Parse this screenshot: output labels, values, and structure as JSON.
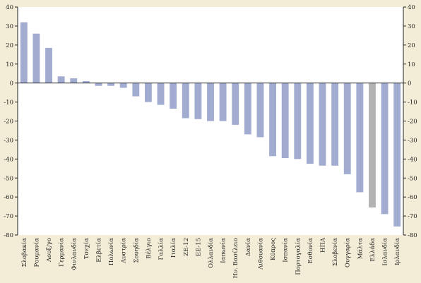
{
  "chart_data": {
    "type": "bar",
    "title": "",
    "xlabel": "",
    "ylabel": "",
    "ylim": [
      -80,
      40
    ],
    "yticks": [
      "40",
      "30",
      "20",
      "10",
      "0",
      "-10",
      "-20",
      "-30",
      "-40",
      "-50",
      "-60",
      "-70",
      "-80"
    ],
    "grid": false,
    "axes": "left-and-right",
    "colors": {
      "bar": "#a1acd0",
      "highlight": "#b3b3b3",
      "background": "#f3ecd7",
      "plot_background": "#ffffff"
    },
    "highlight_category": "Ελλάδα",
    "categories": [
      "Σλοβακία",
      "Ρουμανία",
      "Λουξ/γο",
      "Γερμανία",
      "Φινλανδία",
      "Τσεχία",
      "Ελβετία",
      "Πολωνία",
      "Αυστρία",
      "Σουηδία",
      "Βέλγιο",
      "Γαλλία",
      "Ιταλία",
      "ΖΕ-12",
      "ΕΕ-15",
      "Ολλανδία",
      "Ιαπωνία",
      "Ην. Βασίλειο",
      "Δανία",
      "Λιθουανία",
      "Κύπρος",
      "Ισπανία",
      "Πορτογαλία",
      "Εσθονία",
      "ΗΠΑ",
      "Σλοβενία",
      "Ουγγαρία",
      "Μάλτα",
      "Ελλάδα",
      "Ισλανδία",
      "Ιρλανδία"
    ],
    "values": [
      32,
      26,
      18.5,
      3.5,
      2.5,
      1,
      -1.5,
      -1.5,
      -2.5,
      -7,
      -10,
      -11.5,
      -13.5,
      -18.5,
      -19,
      -20,
      -20,
      -22,
      -27,
      -28.5,
      -38.5,
      -39.5,
      -40,
      -42.5,
      -43.5,
      -43.5,
      -48,
      -57.5,
      -65.5,
      -69,
      -75.5
    ]
  }
}
